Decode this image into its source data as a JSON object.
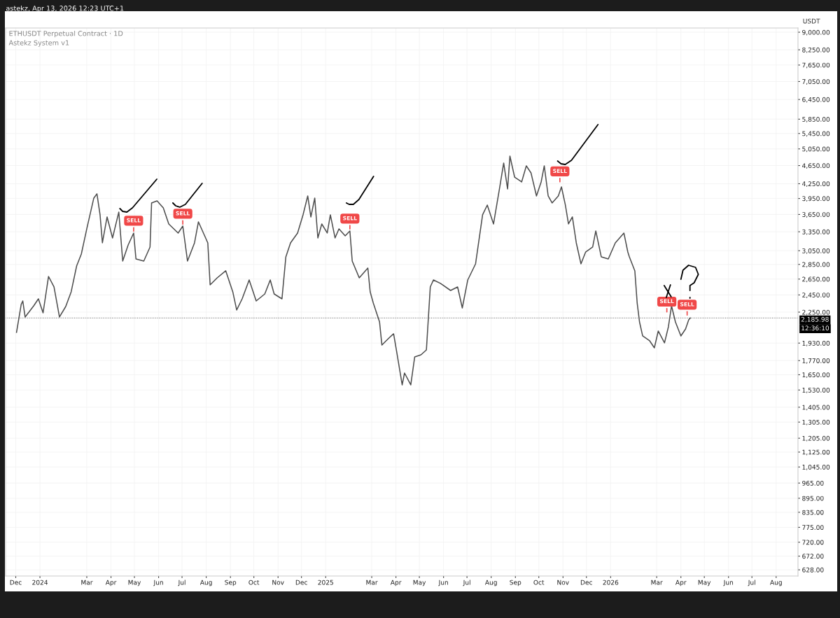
{
  "chart_data": {
    "type": "line",
    "title": "ETHUSDT Perpetual Contract · 1D",
    "subtitle": "Astekz System v1",
    "ylabel": "USDT",
    "annotations": [
      "astekz, Apr 13, 2026 12:23 UTC+1",
      "12:36:10",
      {
        "text": "SELL",
        "x": "2024-04-30",
        "y": 3329
      },
      {
        "text": "SELL",
        "x": "2024-07-02",
        "y": 3446
      },
      {
        "text": "SELL",
        "x": "2025-02-01",
        "y": 3364
      },
      {
        "text": "SELL",
        "x": "2025-10-28",
        "y": 4250
      },
      {
        "text": "SELL",
        "x": "2026-03-14",
        "y": 2230
      },
      {
        "text": "SELL",
        "x": "2026-04-09",
        "y": 2196
      }
    ],
    "x": [
      "2023-12-02",
      "2023-12-08",
      "2023-12-10",
      "2023-12-13",
      "2023-12-24",
      "2023-12-30",
      "2024-01-05",
      "2024-01-12",
      "2024-01-19",
      "2024-01-26",
      "2024-02-03",
      "2024-02-10",
      "2024-02-17",
      "2024-02-23",
      "2024-03-01",
      "2024-03-10",
      "2024-03-14",
      "2024-03-18",
      "2024-03-21",
      "2024-03-27",
      "2024-04-03",
      "2024-04-11",
      "2024-04-16",
      "2024-04-23",
      "2024-04-30",
      "2024-05-03",
      "2024-05-13",
      "2024-05-21",
      "2024-05-23",
      "2024-05-30",
      "2024-06-07",
      "2024-06-14",
      "2024-06-26",
      "2024-07-02",
      "2024-07-08",
      "2024-07-17",
      "2024-07-22",
      "2024-07-30",
      "2024-08-03",
      "2024-08-06",
      "2024-08-15",
      "2024-08-26",
      "2024-09-04",
      "2024-09-09",
      "2024-09-16",
      "2024-09-25",
      "2024-10-04",
      "2024-10-15",
      "2024-10-22",
      "2024-10-27",
      "2024-11-06",
      "2024-11-11",
      "2024-11-17",
      "2024-11-26",
      "2024-12-03",
      "2024-12-09",
      "2024-12-13",
      "2024-12-18",
      "2024-12-22",
      "2024-12-27",
      "2025-01-03",
      "2025-01-07",
      "2025-01-13",
      "2025-01-18",
      "2025-01-26",
      "2025-02-01",
      "2025-02-04",
      "2025-02-13",
      "2025-02-24",
      "2025-02-27",
      "2025-03-03",
      "2025-03-11",
      "2025-03-14",
      "2025-03-23",
      "2025-03-29",
      "2025-04-02",
      "2025-04-09",
      "2025-04-12",
      "2025-04-20",
      "2025-04-25",
      "2025-05-03",
      "2025-05-10",
      "2025-05-15",
      "2025-05-19",
      "2025-05-28",
      "2025-06-10",
      "2025-06-19",
      "2025-06-25",
      "2025-07-02",
      "2025-07-12",
      "2025-07-21",
      "2025-07-27",
      "2025-08-04",
      "2025-08-12",
      "2025-08-17",
      "2025-08-22",
      "2025-08-25",
      "2025-08-31",
      "2025-09-09",
      "2025-09-15",
      "2025-09-21",
      "2025-09-28",
      "2025-10-04",
      "2025-10-08",
      "2025-10-13",
      "2025-10-18",
      "2025-10-26",
      "2025-10-30",
      "2025-11-04",
      "2025-11-08",
      "2025-11-13",
      "2025-11-18",
      "2025-11-24",
      "2025-11-30",
      "2025-12-09",
      "2025-12-13",
      "2025-12-20",
      "2025-12-29",
      "2026-01-07",
      "2026-01-18",
      "2026-01-23",
      "2026-01-25",
      "2026-02-01",
      "2026-02-04",
      "2026-02-07",
      "2026-02-11",
      "2026-02-20",
      "2026-02-26",
      "2026-03-03",
      "2026-03-11",
      "2026-03-16",
      "2026-03-20",
      "2026-03-25",
      "2026-04-01",
      "2026-04-07",
      "2026-04-11",
      "2026-04-13"
    ],
    "series": [
      {
        "color": "#4d4d4d",
        "values": [
          2035,
          2338,
          2378,
          2196,
          2321,
          2403,
          2242,
          2685,
          2549,
          2196,
          2313,
          2488,
          2828,
          3000,
          3399,
          3959,
          4042,
          3643,
          3171,
          3605,
          3249,
          3694,
          2898,
          3138,
          3329,
          2928,
          2898,
          3106,
          3864,
          3904,
          3771,
          3482,
          3329,
          3446,
          2898,
          3171,
          3519,
          3283,
          3171,
          2576,
          2666,
          2761,
          2488,
          2274,
          2403,
          2639,
          2378,
          2462,
          2639,
          2462,
          2403,
          2959,
          3171,
          3329,
          3643,
          4000,
          3605,
          3959,
          3249,
          3482,
          3329,
          3643,
          3249,
          3399,
          3283,
          3364,
          2898,
          2666,
          2799,
          2488,
          2354,
          2143,
          1912,
          1979,
          2021,
          1847,
          1569,
          1664,
          1569,
          1802,
          1821,
          1866,
          2549,
          2639,
          2594,
          2505,
          2549,
          2297,
          2639,
          2858,
          3643,
          3824,
          3482,
          4184,
          4708,
          4141,
          4874,
          4392,
          4287,
          4643,
          4485,
          4000,
          4287,
          4643,
          4000,
          3864,
          4000,
          4184,
          3824,
          3482,
          3605,
          3171,
          2858,
          3031,
          3106,
          3364,
          2959,
          2928,
          3171,
          3329,
          3031,
          2959,
          2761,
          2354,
          2143,
          2000,
          1952,
          1885,
          2049,
          1932,
          2092,
          2321,
          2143,
          2000,
          2070,
          2166,
          2186
        ]
      }
    ],
    "log": "y",
    "ylim": [
      609,
      9190
    ],
    "yticks": [
      {
        "value": 628,
        "label": "628.00"
      },
      {
        "value": 672,
        "label": "672.00"
      },
      {
        "value": 720,
        "label": "720.00"
      },
      {
        "value": 775,
        "label": "775.00"
      },
      {
        "value": 835,
        "label": "835.00"
      },
      {
        "value": 895,
        "label": "895.00"
      },
      {
        "value": 965,
        "label": "965.00"
      },
      {
        "value": 1045,
        "label": "1,045.00"
      },
      {
        "value": 1125,
        "label": "1,125.00"
      },
      {
        "value": 1205,
        "label": "1,205.00"
      },
      {
        "value": 1305,
        "label": "1,305.00"
      },
      {
        "value": 1405,
        "label": "1,405.00"
      },
      {
        "value": 1530,
        "label": "1,530.00"
      },
      {
        "value": 1650,
        "label": "1,650.00"
      },
      {
        "value": 1770,
        "label": "1,770.00"
      },
      {
        "value": 1930,
        "label": "1,930.00"
      },
      {
        "value": 2250,
        "label": "2,250.00"
      },
      {
        "value": 2450,
        "label": "2,450.00"
      },
      {
        "value": 2650,
        "label": "2,650.00"
      },
      {
        "value": 2850,
        "label": "2,850.00"
      },
      {
        "value": 3050,
        "label": "3,050.00"
      },
      {
        "value": 3350,
        "label": "3,350.00"
      },
      {
        "value": 3650,
        "label": "3,650.00"
      },
      {
        "value": 3950,
        "label": "3,950.00"
      },
      {
        "value": 4250,
        "label": "4,250.00"
      },
      {
        "value": 4650,
        "label": "4,650.00"
      },
      {
        "value": 5050,
        "label": "5,050.00"
      },
      {
        "value": 5450,
        "label": "5,450.00"
      },
      {
        "value": 5850,
        "label": "5,850.00"
      },
      {
        "value": 6450,
        "label": "6,450.00"
      },
      {
        "value": 7050,
        "label": "7,050.00"
      },
      {
        "value": 7650,
        "label": "7,650.00"
      },
      {
        "value": 8250,
        "label": "8,250.00"
      },
      {
        "value": 9000,
        "label": "9,000.00"
      }
    ],
    "xlim": [
      "2023-11-18",
      "2026-08-29"
    ],
    "xticks": [
      {
        "value": "2023-12-01",
        "label": "Dec"
      },
      {
        "value": "2024-01-01",
        "label": "2024"
      },
      {
        "value": "2024-03-01",
        "label": "Mar"
      },
      {
        "value": "2024-04-01",
        "label": "Apr"
      },
      {
        "value": "2024-05-01",
        "label": "May"
      },
      {
        "value": "2024-06-01",
        "label": "Jun"
      },
      {
        "value": "2024-07-01",
        "label": "Jul"
      },
      {
        "value": "2024-08-01",
        "label": "Aug"
      },
      {
        "value": "2024-09-01",
        "label": "Sep"
      },
      {
        "value": "2024-10-01",
        "label": "Oct"
      },
      {
        "value": "2024-11-01",
        "label": "Nov"
      },
      {
        "value": "2024-12-01",
        "label": "Dec"
      },
      {
        "value": "2025-01-01",
        "label": "2025"
      },
      {
        "value": "2025-03-01",
        "label": "Mar"
      },
      {
        "value": "2025-04-01",
        "label": "Apr"
      },
      {
        "value": "2025-05-01",
        "label": "May"
      },
      {
        "value": "2025-06-01",
        "label": "Jun"
      },
      {
        "value": "2025-07-01",
        "label": "Jul"
      },
      {
        "value": "2025-08-01",
        "label": "Aug"
      },
      {
        "value": "2025-09-01",
        "label": "Sep"
      },
      {
        "value": "2025-10-01",
        "label": "Oct"
      },
      {
        "value": "2025-11-01",
        "label": "Nov"
      },
      {
        "value": "2025-12-01",
        "label": "Dec"
      },
      {
        "value": "2026-01-01",
        "label": "2026"
      },
      {
        "value": "2026-03-01",
        "label": "Mar"
      },
      {
        "value": "2026-04-01",
        "label": "Apr"
      },
      {
        "value": "2026-05-01",
        "label": "May"
      },
      {
        "value": "2026-06-01",
        "label": "Jun"
      },
      {
        "value": "2026-07-01",
        "label": "Jul"
      },
      {
        "value": "2026-08-01",
        "label": "Aug"
      }
    ],
    "ref_lines": [
      {
        "axis": "y",
        "value": 2185.98,
        "label": "2,185.98",
        "color": "#555555",
        "line_style": "dotted"
      }
    ],
    "grid": true,
    "line_style": "solid"
  }
}
